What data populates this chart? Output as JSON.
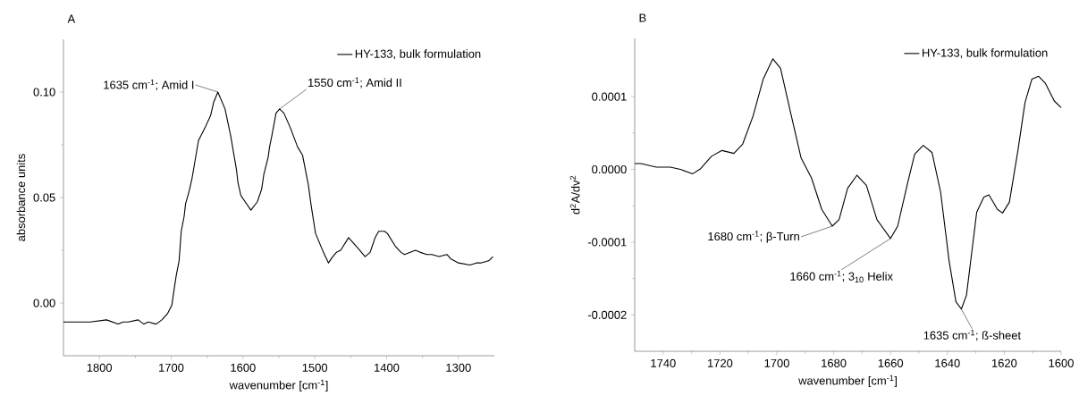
{
  "chart_data": [
    {
      "type": "line",
      "title": "A",
      "xlabel": "wavenumber [cm$^{-1}$]",
      "ylabel": "absorbance units",
      "xlim": [
        1850,
        1250
      ],
      "ylim": [
        -0.025,
        0.125
      ],
      "xticks": [
        1800,
        1700,
        1600,
        1500,
        1400,
        1300
      ],
      "yticks": [
        {
          "value": 0,
          "label": "0.00"
        },
        0.05,
        {
          "value": 0.1,
          "label": "0.10"
        }
      ],
      "legend": "top right",
      "series": [
        {
          "name": "HY-133, bulk formulation",
          "color": "#000000",
          "line_style": "solid",
          "x": [
            1850,
            1824,
            1813,
            1790,
            1774,
            1767,
            1760,
            1746,
            1738,
            1732,
            1721,
            1713,
            1705,
            1699,
            1697,
            1693,
            1689,
            1686,
            1682,
            1680,
            1675,
            1671,
            1662,
            1653,
            1645,
            1641,
            1635,
            1630,
            1625,
            1617,
            1609,
            1607,
            1603,
            1597,
            1589,
            1580,
            1574,
            1571,
            1565,
            1563,
            1560,
            1554,
            1549,
            1543,
            1534,
            1524,
            1517,
            1509,
            1505,
            1499,
            1488,
            1481,
            1475,
            1470,
            1464,
            1453,
            1440,
            1430,
            1423,
            1420,
            1416,
            1411,
            1403,
            1399,
            1388,
            1380,
            1375,
            1360,
            1353,
            1344,
            1337,
            1327,
            1316,
            1311,
            1300,
            1284,
            1275,
            1269,
            1258,
            1252
          ],
          "values": [
            -0.009,
            -0.009,
            -0.009,
            -0.008,
            -0.01,
            -0.009,
            -0.009,
            -0.008,
            -0.01,
            -0.009,
            -0.01,
            -0.008,
            -0.005,
            -0.001,
            0.004,
            0.013,
            0.02,
            0.034,
            0.041,
            0.047,
            0.053,
            0.059,
            0.077,
            0.083,
            0.089,
            0.095,
            0.1,
            0.096,
            0.092,
            0.079,
            0.063,
            0.057,
            0.051,
            0.048,
            0.044,
            0.048,
            0.054,
            0.061,
            0.069,
            0.074,
            0.079,
            0.09,
            0.092,
            0.09,
            0.083,
            0.074,
            0.07,
            0.056,
            0.046,
            0.033,
            0.024,
            0.019,
            0.022,
            0.024,
            0.025,
            0.031,
            0.026,
            0.022,
            0.024,
            0.027,
            0.031,
            0.034,
            0.034,
            0.033,
            0.027,
            0.024,
            0.023,
            0.025,
            0.024,
            0.023,
            0.023,
            0.022,
            0.023,
            0.021,
            0.019,
            0.018,
            0.019,
            0.019,
            0.02,
            0.022
          ]
        }
      ],
      "annotations": [
        {
          "text": "1635 cm$^{-1}$; Amid I",
          "x": 1635,
          "y": 0.1
        },
        {
          "text": "1550 cm$^{-1}$; Amid II",
          "x": 1549,
          "y": 0.092
        }
      ]
    },
    {
      "type": "line",
      "title": "B",
      "xlabel": "wavenumber [cm$^{-1}$]",
      "ylabel": "d$^{2}$A/dv$^{2}$",
      "xlim": [
        1750,
        1600
      ],
      "ylim": [
        -0.00025,
        0.00018
      ],
      "xticks": [
        1740,
        1720,
        1700,
        1680,
        1660,
        1640,
        1620,
        1600
      ],
      "yticks": [
        {
          "value": -0.0002,
          "label": "-0.0002"
        },
        {
          "value": -0.0001,
          "label": "-0.0001"
        },
        {
          "value": 0,
          "label": "0.0000"
        },
        {
          "value": 0.0001,
          "label": "0.0001"
        }
      ],
      "legend": "top right",
      "series": [
        {
          "name": "HY-133, bulk formulation",
          "color": "#000000",
          "line_style": "solid",
          "x": [
            1750,
            1747.8,
            1742.4,
            1737.5,
            1733.9,
            1729.6,
            1726.8,
            1723,
            1719.3,
            1715.1,
            1712,
            1708.4,
            1704.8,
            1701.4,
            1698.7,
            1695.1,
            1691.5,
            1687.8,
            1684.2,
            1680.5,
            1678.1,
            1675.1,
            1671.8,
            1668.5,
            1664.8,
            1660,
            1657.5,
            1653.9,
            1651.5,
            1648.5,
            1645.4,
            1642.4,
            1639.4,
            1637,
            1635.1,
            1633.3,
            1629.7,
            1627.2,
            1625.4,
            1622.4,
            1620.6,
            1618.2,
            1615.2,
            1612.7,
            1610.3,
            1607.9,
            1605.5,
            1602.4,
            1600
          ],
          "values": [
            8e-06,
            8e-06,
            3e-06,
            3e-06,
            0,
            -6e-06,
            1e-06,
            1.8e-05,
            2.6e-05,
            2.2e-05,
            3.5e-05,
            7.3e-05,
            0.000124,
            0.000152,
            0.000139,
            7.7e-05,
            1.6e-05,
            -1.2e-05,
            -5.5e-05,
            -7.8e-05,
            -6.9e-05,
            -2.6e-05,
            -8e-06,
            -2.2e-05,
            -6.9e-05,
            -9.5e-05,
            -7.8e-05,
            -1.7e-05,
            2.1e-05,
            3.3e-05,
            2.3e-05,
            -3.1e-05,
            -0.000126,
            -0.000182,
            -0.000192,
            -0.000173,
            -5.9e-05,
            -3.8e-05,
            -3.5e-05,
            -5.5e-05,
            -6e-05,
            -4.5e-05,
            2.6e-05,
            9.2e-05,
            0.000124,
            0.000128,
            0.000118,
            9.4e-05,
            8.5e-05
          ]
        }
      ],
      "annotations": [
        {
          "text": "1680 cm$^{-1}$; β-Turn",
          "x": 1680.5,
          "y": -7.8e-05
        },
        {
          "text": "1660 cm$^{-1}$; 3$_{10}$ Helix",
          "x": 1660,
          "y": -9.5e-05
        },
        {
          "text": "1635 cm$^{-1}$; ß-sheet",
          "x": 1635.1,
          "y": -0.000192
        }
      ]
    }
  ]
}
